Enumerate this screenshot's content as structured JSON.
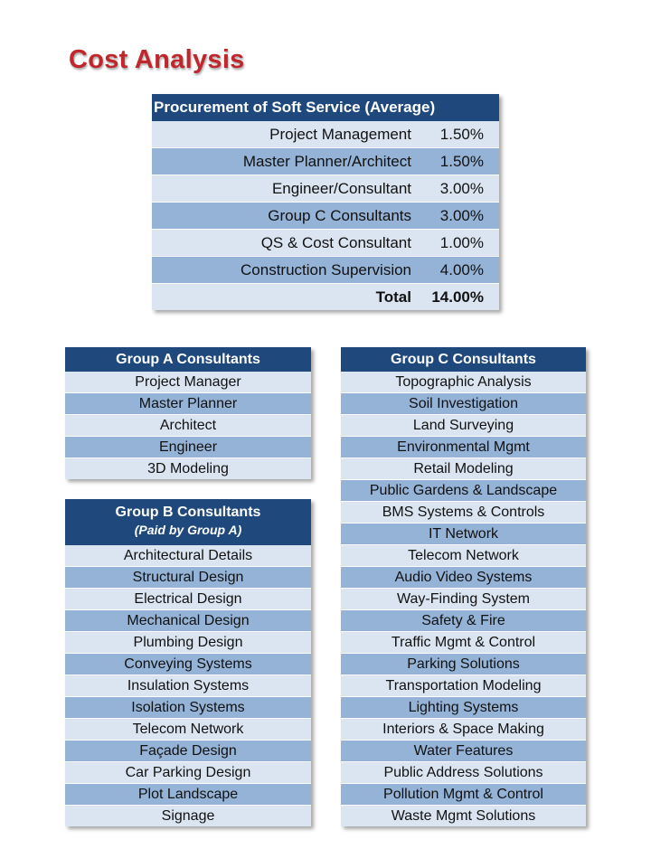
{
  "title": "Cost Analysis",
  "procurement": {
    "header": "Procurement of Soft Service (Average)",
    "rows": [
      {
        "label": "Project Management",
        "value": "1.50%"
      },
      {
        "label": "Master Planner/Architect",
        "value": "1.50%"
      },
      {
        "label": "Engineer/Consultant",
        "value": "3.00%"
      },
      {
        "label": "Group C Consultants",
        "value": "3.00%"
      },
      {
        "label": "QS & Cost Consultant",
        "value": "1.00%"
      },
      {
        "label": "Construction Supervision",
        "value": "4.00%"
      }
    ],
    "total_label": "Total",
    "total_value": "14.00%"
  },
  "group_a": {
    "header": "Group A Consultants",
    "items": [
      "Project Manager",
      "Master Planner",
      "Architect",
      "Engineer",
      "3D Modeling"
    ]
  },
  "group_b": {
    "header": "Group B Consultants",
    "subheader": "(Paid by Group A)",
    "items": [
      "Architectural Details",
      "Structural Design",
      "Electrical Design",
      "Mechanical Design",
      "Plumbing Design",
      "Conveying Systems",
      "Insulation Systems",
      "Isolation Systems",
      "Telecom Network",
      "Façade Design",
      "Car Parking Design",
      "Plot Landscape",
      "Signage"
    ]
  },
  "group_c": {
    "header": "Group C Consultants",
    "items": [
      "Topographic Analysis",
      "Soil Investigation",
      "Land Surveying",
      "Environmental Mgmt",
      "Retail Modeling",
      "Public Gardens & Landscape",
      "BMS Systems & Controls",
      "IT Network",
      "Telecom Network",
      "Audio Video Systems",
      "Way-Finding System",
      "Safety & Fire",
      "Traffic Mgmt & Control",
      "Parking Solutions",
      "Transportation Modeling",
      "Lighting Systems",
      "Interiors & Space Making",
      "Water Features",
      "Public Address Solutions",
      "Pollution Mgmt & Control",
      "Waste Mgmt Solutions"
    ]
  },
  "colors": {
    "header": "#1f497d",
    "row_light": "#dbe5f1",
    "row_dark": "#95b3d7",
    "title": "#c0272d"
  }
}
